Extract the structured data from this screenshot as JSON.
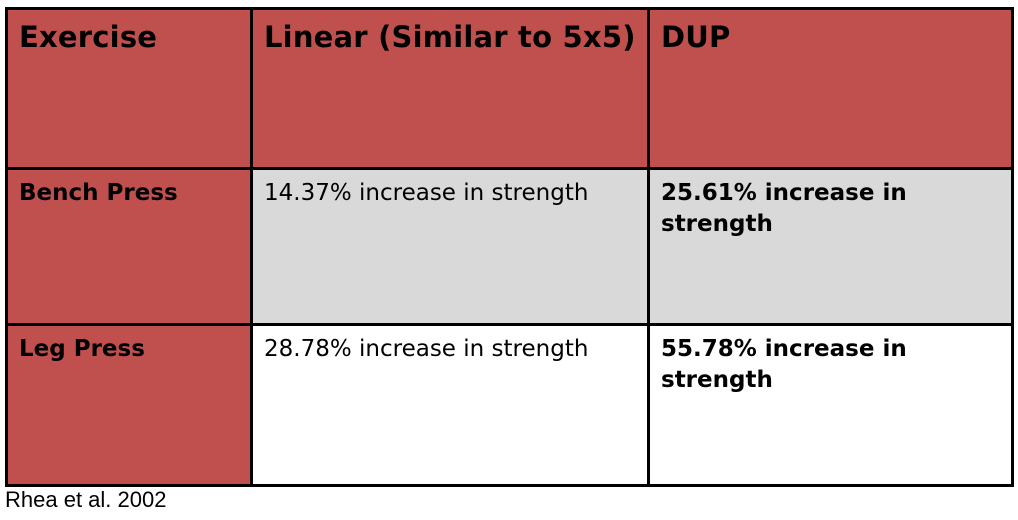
{
  "table": {
    "headers": [
      "Exercise",
      "Linear (Similar to 5x5)",
      "DUP"
    ],
    "rows": [
      {
        "exercise": "Bench Press",
        "linear": "14.37% increase in strength",
        "dup": "25.61% increase in strength"
      },
      {
        "exercise": "Leg Press",
        "linear": "28.78% increase in strength",
        "dup": "55.78% increase in strength"
      }
    ]
  },
  "citation": "Rhea et al. 2002",
  "colors": {
    "header_fill": "#c0504d",
    "row_alt_fill": "#d9d9d9",
    "border": "#000000"
  }
}
